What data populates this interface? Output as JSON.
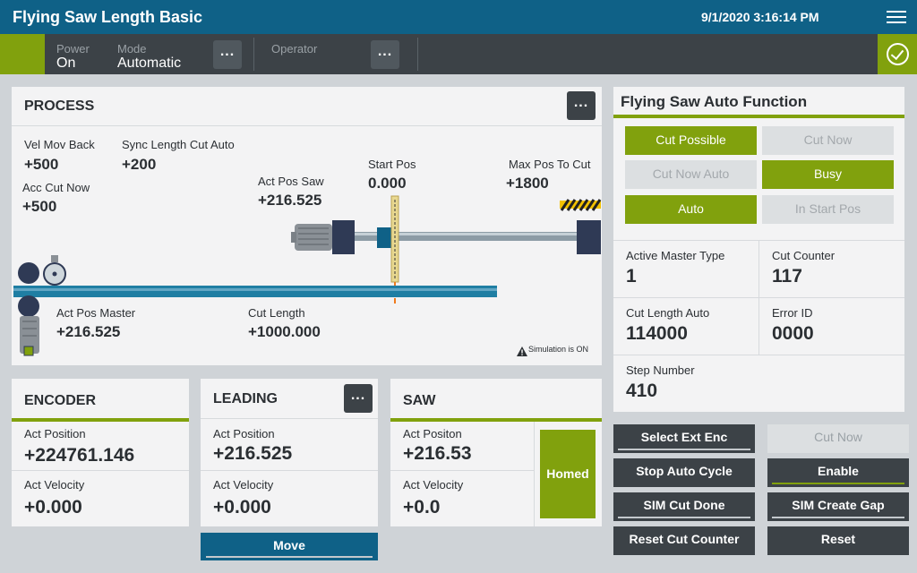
{
  "header": {
    "title": "Flying Saw Length Basic",
    "datetime": "9/1/2020 3:16:14 PM"
  },
  "status": {
    "power_label": "Power",
    "power_value": "On",
    "mode_label": "Mode",
    "mode_value": "Automatic",
    "operator_label": "Operator",
    "dots": "..."
  },
  "process": {
    "title": "PROCESS",
    "vel_mov_back_label": "Vel Mov Back",
    "vel_mov_back": "+500",
    "sync_length_label": "Sync Length Cut Auto",
    "sync_length": "+200",
    "acc_cut_now_label": "Acc Cut Now",
    "acc_cut_now": "+500",
    "act_pos_saw_label": "Act Pos Saw",
    "act_pos_saw": "+216.525",
    "start_pos_label": "Start Pos",
    "start_pos": "0.000",
    "max_pos_label": "Max Pos To Cut",
    "max_pos": "+1800",
    "act_pos_master_label": "Act Pos Master",
    "act_pos_master": "+216.525",
    "cut_length_label": "Cut Length",
    "cut_length": "+1000.000",
    "simulation": "Simulation is ON"
  },
  "encoder": {
    "title": "ENCODER",
    "pos_label": "Act Position",
    "pos": "+224761.146",
    "vel_label": "Act Velocity",
    "vel": "+0.000"
  },
  "leading": {
    "title": "LEADING",
    "pos_label": "Act Position",
    "pos": "+216.525",
    "vel_label": "Act Velocity",
    "vel": "+0.000",
    "move": "Move"
  },
  "saw": {
    "title": "SAW",
    "pos_label": "Act Positon",
    "pos": "+216.53",
    "vel_label": "Act Velocity",
    "vel": "+0.0",
    "homed": "Homed"
  },
  "auto_function": {
    "title": "Flying Saw Auto Function",
    "cut_possible": "Cut Possible",
    "cut_now": "Cut Now",
    "cut_now_auto": "Cut Now Auto",
    "busy": "Busy",
    "auto": "Auto",
    "in_start_pos": "In Start Pos",
    "active_master_type_label": "Active Master Type",
    "active_master_type": "1",
    "cut_counter_label": "Cut Counter",
    "cut_counter": "117",
    "cut_length_auto_label": "Cut Length Auto",
    "cut_length_auto": "114000",
    "error_id_label": "Error ID",
    "error_id": "0000",
    "step_number_label": "Step Number",
    "step_number": "410"
  },
  "actions": {
    "select_ext_enc": "Select Ext Enc",
    "cut_now": "Cut Now",
    "stop_auto_cycle": "Stop Auto Cycle",
    "enable": "Enable",
    "sim_cut_done": "SIM Cut Done",
    "sim_create_gap": "SIM Create Gap",
    "reset_cut_counter": "Reset Cut Counter",
    "reset": "Reset"
  },
  "colors": {
    "header": "#0f6187",
    "accent_green": "#81a10d",
    "dark": "#3c4247",
    "conveyor": "#1f7ea3"
  }
}
